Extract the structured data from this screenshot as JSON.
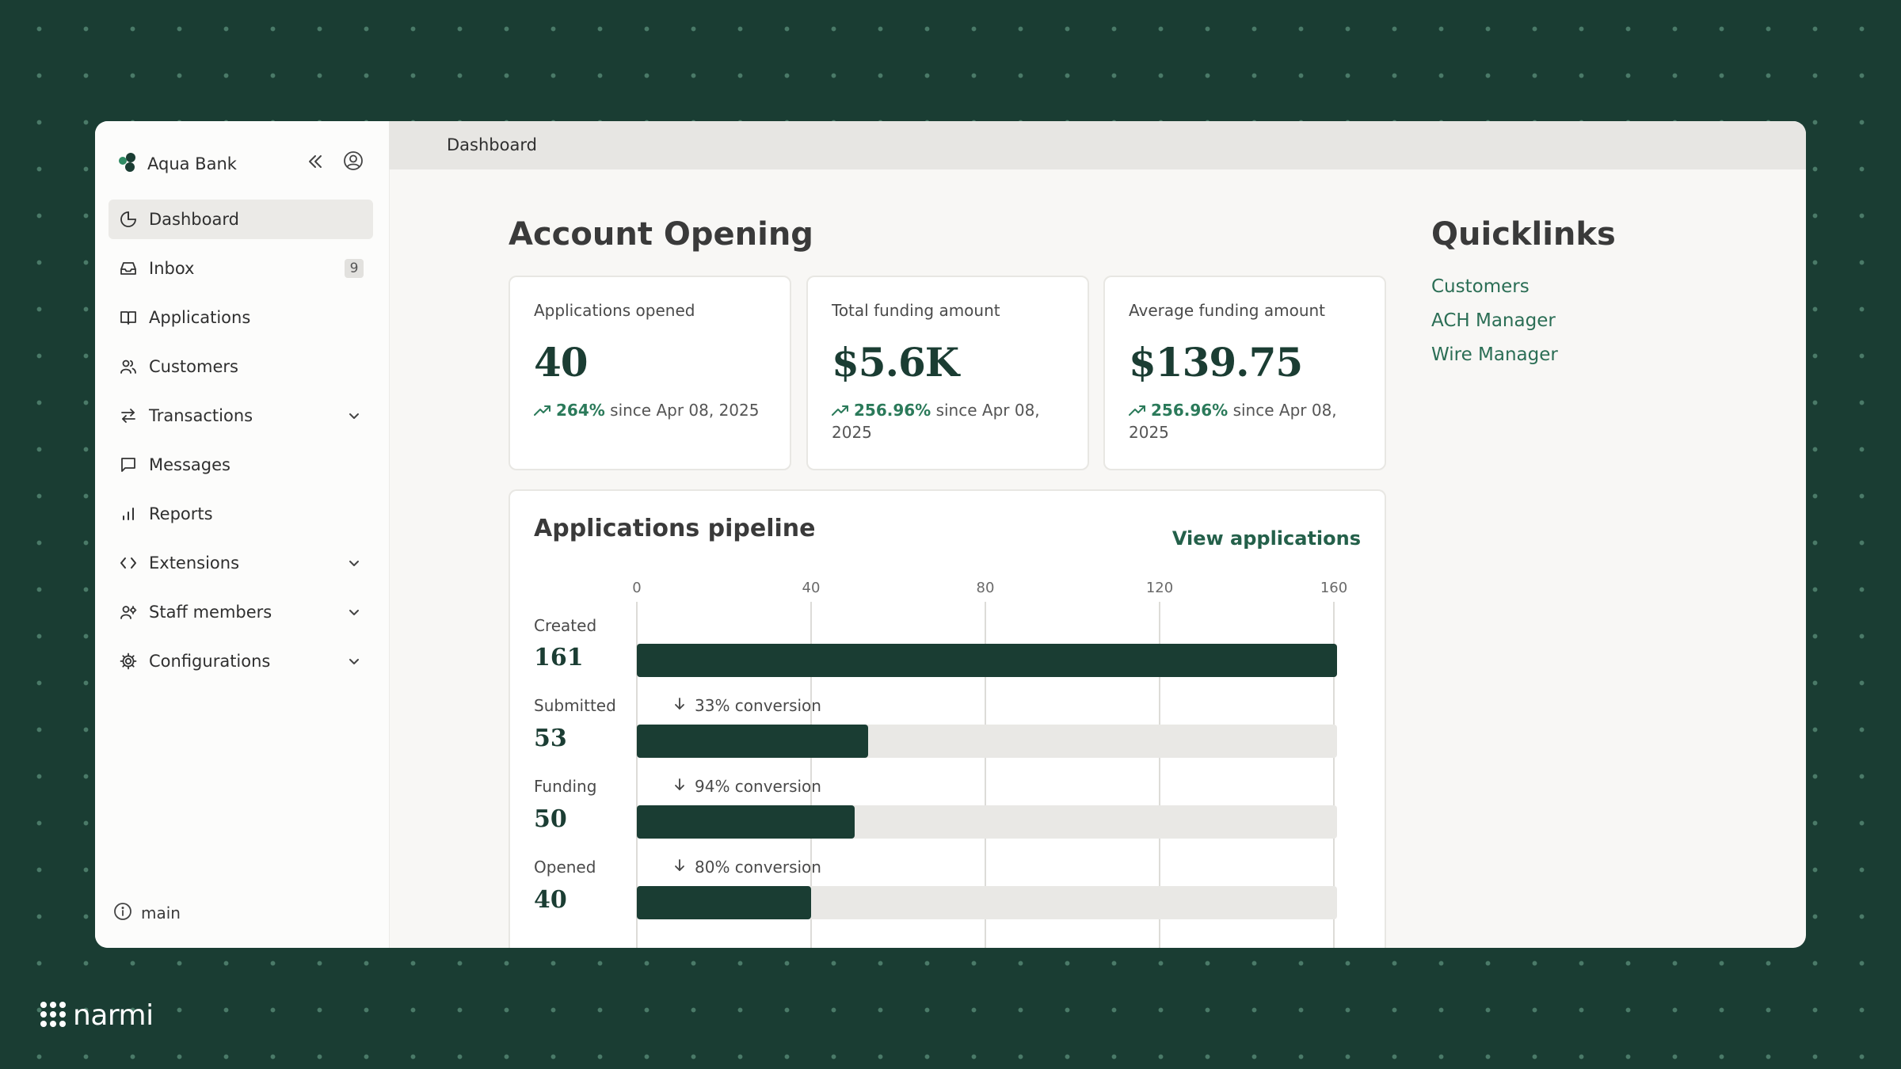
{
  "brand": {
    "name": "Aqua Bank"
  },
  "colors": {
    "brand_dark": "#1a3d33",
    "accent_green": "#2b7a5a",
    "background": "#1a3d33"
  },
  "sidebar": {
    "items": [
      {
        "label": "Dashboard",
        "icon": "pie-chart-icon",
        "active": true
      },
      {
        "label": "Inbox",
        "icon": "inbox-icon",
        "badge": "9"
      },
      {
        "label": "Applications",
        "icon": "book-icon"
      },
      {
        "label": "Customers",
        "icon": "users-icon"
      },
      {
        "label": "Transactions",
        "icon": "arrows-exchange-icon",
        "expandable": true
      },
      {
        "label": "Messages",
        "icon": "message-icon"
      },
      {
        "label": "Reports",
        "icon": "bar-chart-icon"
      },
      {
        "label": "Extensions",
        "icon": "code-icon",
        "expandable": true
      },
      {
        "label": "Staff members",
        "icon": "staff-icon",
        "expandable": true
      },
      {
        "label": "Configurations",
        "icon": "gear-icon",
        "expandable": true
      }
    ],
    "environment": "main"
  },
  "topbar": {
    "breadcrumb": "Dashboard"
  },
  "account_opening": {
    "title": "Account Opening",
    "stats": [
      {
        "label": "Applications opened",
        "value": "40",
        "change": "264%",
        "since": " since Apr 08, 2025"
      },
      {
        "label": "Total funding amount",
        "value": "$5.6K",
        "change": "256.96%",
        "since": " since Apr 08, 2025"
      },
      {
        "label": "Average funding amount",
        "value": "$139.75",
        "change": "256.96%",
        "since": " since Apr 08, 2025"
      }
    ]
  },
  "quicklinks": {
    "title": "Quicklinks",
    "links": [
      "Customers",
      "ACH Manager",
      "Wire Manager"
    ]
  },
  "pipeline": {
    "title": "Applications pipeline",
    "view_link": "View applications",
    "axis_ticks": [
      "0",
      "40",
      "80",
      "120",
      "160"
    ],
    "stages": [
      {
        "label": "Created",
        "count": "161",
        "conversion": ""
      },
      {
        "label": "Submitted",
        "count": "53",
        "conversion": "33% conversion"
      },
      {
        "label": "Funding",
        "count": "50",
        "conversion": "94% conversion"
      },
      {
        "label": "Opened",
        "count": "40",
        "conversion": "80% conversion"
      }
    ]
  },
  "chart_data": {
    "type": "bar",
    "title": "Applications pipeline",
    "categories": [
      "Created",
      "Submitted",
      "Funding",
      "Opened"
    ],
    "values": [
      161,
      53,
      50,
      40
    ],
    "xlim": [
      0,
      160
    ],
    "grid": true
  },
  "footer": {
    "logo_text": "narmi"
  }
}
